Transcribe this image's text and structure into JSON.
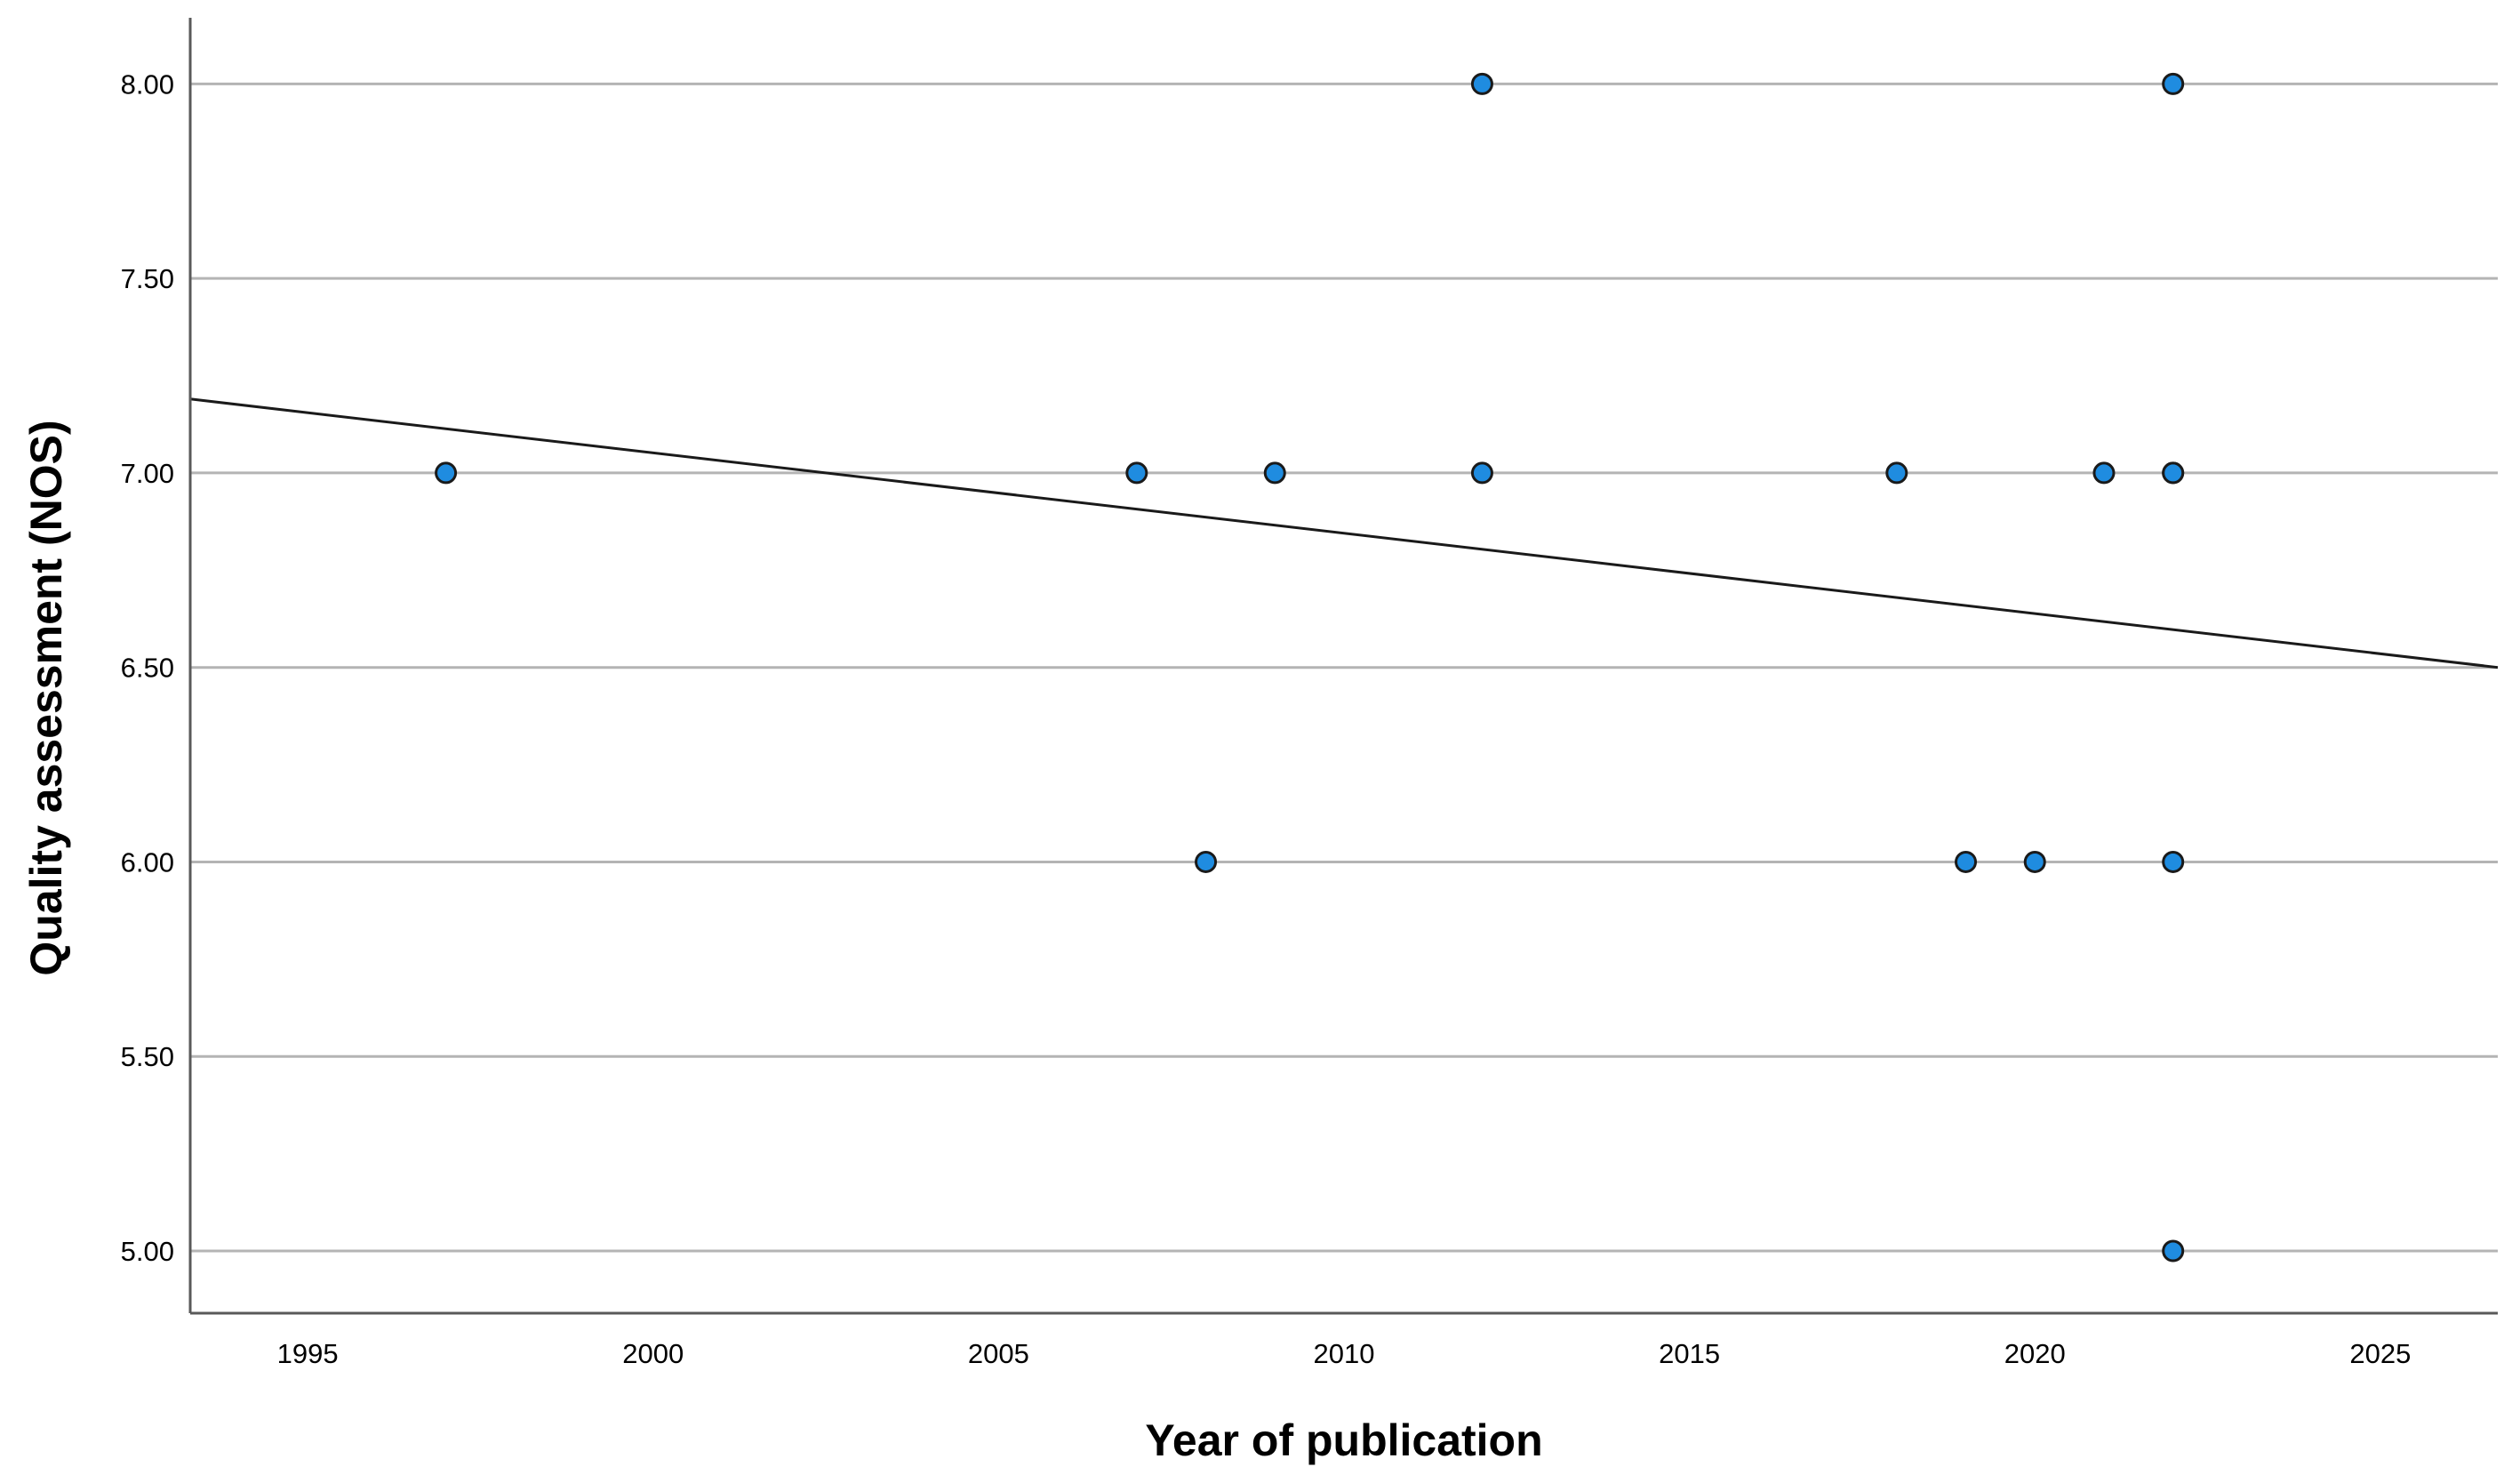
{
  "chart_data": {
    "type": "scatter",
    "title": "",
    "xlabel": "Year of publication",
    "ylabel": "Quality assessment (NOS)",
    "xlim": [
      1993.3,
      2026.7
    ],
    "ylim": [
      4.84,
      8.17
    ],
    "x_ticks": [
      1995,
      2000,
      2005,
      2010,
      2015,
      2020,
      2025
    ],
    "x_tick_labels": [
      "1995",
      "2000",
      "2005",
      "2010",
      "2015",
      "2020",
      "2025"
    ],
    "y_ticks": [
      5.0,
      5.5,
      6.0,
      6.5,
      7.0,
      7.5,
      8.0
    ],
    "y_tick_labels": [
      "5.00",
      "5.50",
      "6.00",
      "6.50",
      "7.00",
      "7.50",
      "8.00"
    ],
    "grid": "horizontal",
    "series": [
      {
        "points": [
          {
            "x": 1997,
            "y": 7
          },
          {
            "x": 2007,
            "y": 7
          },
          {
            "x": 2008,
            "y": 6
          },
          {
            "x": 2009,
            "y": 7
          },
          {
            "x": 2012,
            "y": 8
          },
          {
            "x": 2012,
            "y": 7
          },
          {
            "x": 2018,
            "y": 7
          },
          {
            "x": 2019,
            "y": 6
          },
          {
            "x": 2020,
            "y": 6
          },
          {
            "x": 2021,
            "y": 7
          },
          {
            "x": 2022,
            "y": 8
          },
          {
            "x": 2022,
            "y": 7
          },
          {
            "x": 2022,
            "y": 7
          },
          {
            "x": 2022,
            "y": 6
          },
          {
            "x": 2022,
            "y": 5
          }
        ]
      }
    ],
    "fit_line": {
      "type": "linear",
      "start": {
        "x": 1993.3,
        "y": 7.19
      },
      "end": {
        "x": 2026.7,
        "y": 6.5
      }
    },
    "colors": {
      "marker_fill": "#1f8ce0",
      "marker_stroke": "#1a1a1a",
      "grid": "#b4b4b4",
      "fit_line": "#1a1a1a",
      "axis": "#595959"
    }
  }
}
